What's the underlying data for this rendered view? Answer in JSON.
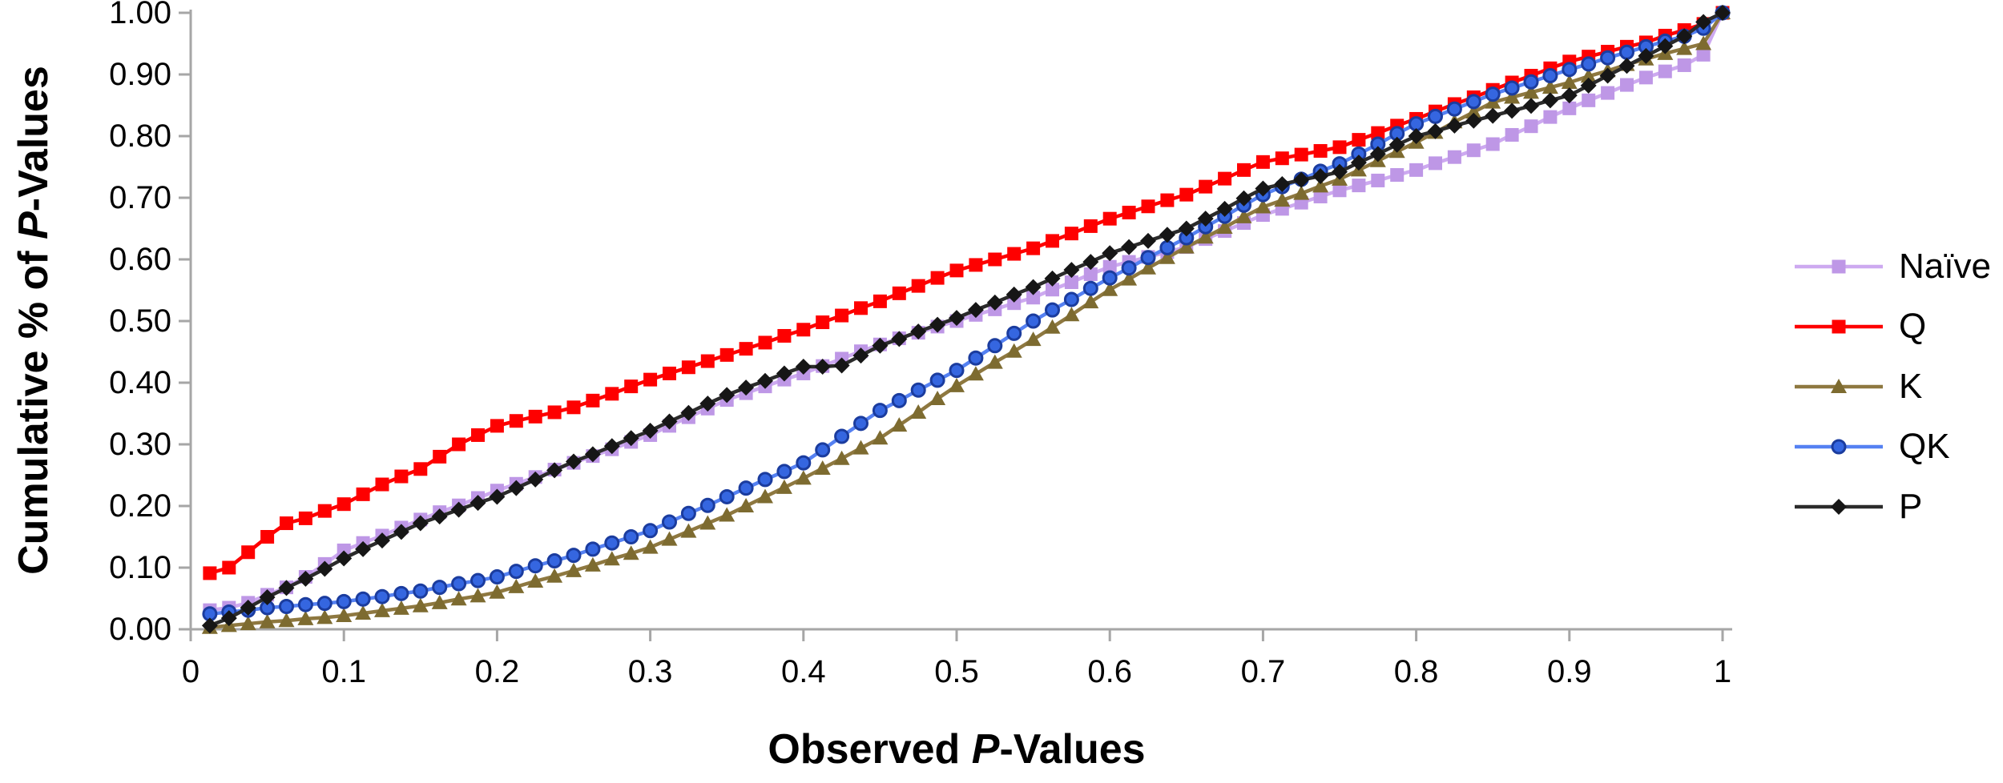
{
  "chart_data": {
    "type": "line",
    "title": "",
    "xlabel_parts": [
      "Observed ",
      "P",
      "-Values"
    ],
    "ylabel_parts": [
      "Cumulative % of ",
      "P",
      "-Values"
    ],
    "xlim": [
      0,
      1
    ],
    "ylim": [
      0,
      1
    ],
    "grid": false,
    "legend_position": "right",
    "axis_color": "#a6a6a6",
    "x_ticks": [
      {
        "v": 0.0,
        "label": "0"
      },
      {
        "v": 0.1,
        "label": "0.1"
      },
      {
        "v": 0.2,
        "label": "0.2"
      },
      {
        "v": 0.3,
        "label": "0.3"
      },
      {
        "v": 0.4,
        "label": "0.4"
      },
      {
        "v": 0.5,
        "label": "0.5"
      },
      {
        "v": 0.6,
        "label": "0.6"
      },
      {
        "v": 0.7,
        "label": "0.7"
      },
      {
        "v": 0.8,
        "label": "0.8"
      },
      {
        "v": 0.9,
        "label": "0.9"
      },
      {
        "v": 1.0,
        "label": "1"
      }
    ],
    "y_ticks": [
      {
        "v": 0.0,
        "label": "0.00"
      },
      {
        "v": 0.1,
        "label": "0.10"
      },
      {
        "v": 0.2,
        "label": "0.20"
      },
      {
        "v": 0.3,
        "label": "0.30"
      },
      {
        "v": 0.4,
        "label": "0.40"
      },
      {
        "v": 0.5,
        "label": "0.50"
      },
      {
        "v": 0.6,
        "label": "0.60"
      },
      {
        "v": 0.7,
        "label": "0.70"
      },
      {
        "v": 0.8,
        "label": "0.80"
      },
      {
        "v": 0.9,
        "label": "0.90"
      },
      {
        "v": 1.0,
        "label": "1.00"
      }
    ],
    "x": [
      0.0125,
      0.025,
      0.0375,
      0.05,
      0.0625,
      0.075,
      0.0875,
      0.1,
      0.1125,
      0.125,
      0.1375,
      0.15,
      0.1625,
      0.175,
      0.1875,
      0.2,
      0.2125,
      0.225,
      0.2375,
      0.25,
      0.2625,
      0.275,
      0.2875,
      0.3,
      0.3125,
      0.325,
      0.3375,
      0.35,
      0.3625,
      0.375,
      0.3875,
      0.4,
      0.4125,
      0.425,
      0.4375,
      0.45,
      0.4625,
      0.475,
      0.4875,
      0.5,
      0.5125,
      0.525,
      0.5375,
      0.55,
      0.5625,
      0.575,
      0.5875,
      0.6,
      0.6125,
      0.625,
      0.6375,
      0.65,
      0.6625,
      0.675,
      0.6875,
      0.7,
      0.7125,
      0.725,
      0.7375,
      0.75,
      0.7625,
      0.775,
      0.7875,
      0.8,
      0.8125,
      0.825,
      0.8375,
      0.85,
      0.8625,
      0.875,
      0.8875,
      0.9,
      0.9125,
      0.925,
      0.9375,
      0.95,
      0.9625,
      0.975,
      0.9875,
      1.0
    ],
    "series": [
      {
        "name": "Naïve",
        "marker": "square",
        "line_color": "#cda9f0",
        "marker_color": "#be97e6",
        "values": [
          0.031,
          0.035,
          0.043,
          0.056,
          0.068,
          0.085,
          0.106,
          0.128,
          0.14,
          0.152,
          0.165,
          0.178,
          0.19,
          0.201,
          0.213,
          0.225,
          0.236,
          0.247,
          0.259,
          0.27,
          0.281,
          0.292,
          0.304,
          0.315,
          0.33,
          0.344,
          0.358,
          0.372,
          0.383,
          0.394,
          0.405,
          0.415,
          0.427,
          0.439,
          0.451,
          0.462,
          0.472,
          0.481,
          0.491,
          0.5,
          0.51,
          0.519,
          0.529,
          0.538,
          0.551,
          0.563,
          0.576,
          0.588,
          0.596,
          0.604,
          0.612,
          0.62,
          0.633,
          0.646,
          0.659,
          0.672,
          0.682,
          0.692,
          0.702,
          0.712,
          0.72,
          0.728,
          0.737,
          0.745,
          0.756,
          0.766,
          0.777,
          0.787,
          0.802,
          0.816,
          0.831,
          0.845,
          0.858,
          0.87,
          0.883,
          0.895,
          0.905,
          0.915,
          0.932,
          1.0
        ]
      },
      {
        "name": "Q",
        "marker": "square",
        "line_color": "#fe0000",
        "marker_color": "#fe0000",
        "values": [
          0.091,
          0.1,
          0.125,
          0.15,
          0.172,
          0.18,
          0.192,
          0.203,
          0.219,
          0.235,
          0.248,
          0.26,
          0.28,
          0.3,
          0.315,
          0.33,
          0.338,
          0.345,
          0.352,
          0.36,
          0.371,
          0.382,
          0.394,
          0.405,
          0.415,
          0.425,
          0.435,
          0.445,
          0.455,
          0.465,
          0.476,
          0.486,
          0.498,
          0.509,
          0.521,
          0.532,
          0.545,
          0.557,
          0.57,
          0.582,
          0.591,
          0.6,
          0.609,
          0.618,
          0.63,
          0.642,
          0.654,
          0.666,
          0.676,
          0.686,
          0.696,
          0.705,
          0.718,
          0.731,
          0.745,
          0.758,
          0.764,
          0.77,
          0.776,
          0.782,
          0.794,
          0.805,
          0.817,
          0.828,
          0.84,
          0.852,
          0.863,
          0.875,
          0.887,
          0.898,
          0.91,
          0.921,
          0.929,
          0.937,
          0.945,
          0.952,
          0.963,
          0.972,
          0.982,
          1.0
        ]
      },
      {
        "name": "K",
        "marker": "triangle",
        "line_color": "#8e7840",
        "marker_color": "#7d6b30",
        "values": [
          0.003,
          0.006,
          0.009,
          0.012,
          0.014,
          0.017,
          0.019,
          0.022,
          0.026,
          0.03,
          0.034,
          0.038,
          0.043,
          0.049,
          0.054,
          0.06,
          0.069,
          0.078,
          0.086,
          0.095,
          0.104,
          0.114,
          0.123,
          0.133,
          0.146,
          0.159,
          0.172,
          0.185,
          0.2,
          0.215,
          0.23,
          0.245,
          0.261,
          0.277,
          0.294,
          0.31,
          0.331,
          0.352,
          0.374,
          0.395,
          0.414,
          0.433,
          0.451,
          0.47,
          0.49,
          0.51,
          0.531,
          0.551,
          0.568,
          0.586,
          0.603,
          0.62,
          0.636,
          0.652,
          0.669,
          0.685,
          0.696,
          0.707,
          0.719,
          0.73,
          0.745,
          0.76,
          0.775,
          0.79,
          0.806,
          0.823,
          0.839,
          0.855,
          0.863,
          0.871,
          0.879,
          0.887,
          0.897,
          0.906,
          0.916,
          0.925,
          0.934,
          0.942,
          0.95,
          1.0
        ]
      },
      {
        "name": "QK",
        "marker": "circle",
        "line_color": "#5581f2",
        "marker_color": "#3566e0",
        "marker_stroke": "#1b3c9e",
        "values": [
          0.025,
          0.028,
          0.031,
          0.035,
          0.037,
          0.04,
          0.042,
          0.045,
          0.049,
          0.053,
          0.058,
          0.062,
          0.068,
          0.074,
          0.079,
          0.085,
          0.094,
          0.103,
          0.111,
          0.12,
          0.13,
          0.14,
          0.15,
          0.16,
          0.174,
          0.188,
          0.201,
          0.215,
          0.229,
          0.243,
          0.256,
          0.27,
          0.291,
          0.313,
          0.334,
          0.355,
          0.371,
          0.388,
          0.404,
          0.42,
          0.44,
          0.46,
          0.48,
          0.5,
          0.518,
          0.535,
          0.553,
          0.57,
          0.586,
          0.603,
          0.619,
          0.635,
          0.653,
          0.67,
          0.688,
          0.705,
          0.718,
          0.73,
          0.743,
          0.755,
          0.771,
          0.787,
          0.804,
          0.82,
          0.832,
          0.844,
          0.856,
          0.868,
          0.878,
          0.888,
          0.898,
          0.908,
          0.917,
          0.927,
          0.936,
          0.945,
          0.954,
          0.962,
          0.975,
          1.0
        ]
      },
      {
        "name": "P",
        "marker": "diamond",
        "line_color": "#2b2b2b",
        "marker_color": "#161616",
        "values": [
          0.006,
          0.018,
          0.035,
          0.052,
          0.067,
          0.082,
          0.098,
          0.115,
          0.13,
          0.144,
          0.158,
          0.172,
          0.183,
          0.194,
          0.205,
          0.215,
          0.229,
          0.243,
          0.258,
          0.272,
          0.284,
          0.297,
          0.31,
          0.322,
          0.337,
          0.351,
          0.366,
          0.38,
          0.392,
          0.403,
          0.415,
          0.426,
          0.426,
          0.428,
          0.444,
          0.46,
          0.471,
          0.483,
          0.494,
          0.505,
          0.518,
          0.53,
          0.543,
          0.555,
          0.569,
          0.583,
          0.596,
          0.61,
          0.62,
          0.63,
          0.64,
          0.65,
          0.666,
          0.682,
          0.699,
          0.715,
          0.722,
          0.729,
          0.735,
          0.742,
          0.757,
          0.771,
          0.786,
          0.8,
          0.808,
          0.817,
          0.825,
          0.833,
          0.841,
          0.849,
          0.858,
          0.866,
          0.882,
          0.898,
          0.914,
          0.93,
          0.946,
          0.962,
          0.985,
          1.0
        ]
      }
    ]
  }
}
